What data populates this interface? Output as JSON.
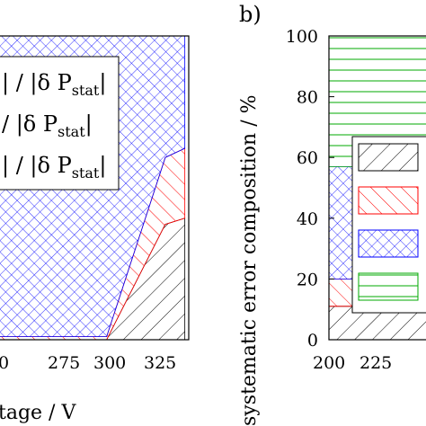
{
  "chart_data": [
    {
      "panel": "",
      "type": "area",
      "stacked": true,
      "xlabel_visible": "tage / V",
      "x_ticks": [
        "0",
        "275",
        "300",
        "325"
      ],
      "xlim": [
        245,
        342
      ],
      "ylim": [
        0,
        1
      ],
      "x": [
        245,
        300,
        330,
        340
      ],
      "series": [
        {
          "pattern": "hatch-left",
          "color": "#000000",
          "values": [
            0.0,
            0.0,
            0.38,
            0.4
          ]
        },
        {
          "pattern": "hatch-right",
          "color": "#ff0000",
          "values": [
            0.01,
            0.01,
            0.22,
            0.23
          ]
        },
        {
          "pattern": "crosshatch",
          "color": "#0000ff",
          "values": [
            0.99,
            0.99,
            0.4,
            0.37
          ]
        }
      ],
      "legend_entries": [
        {
          "main": "| / |δ P",
          "sub": "stat",
          "tail": "|"
        },
        {
          "main": " / |δ P",
          "sub": "stat",
          "tail": "|"
        },
        {
          "main": "| / |δ P",
          "sub": "stat",
          "tail": "|"
        }
      ],
      "legend_position": "left",
      "grid": false
    },
    {
      "panel": "b)",
      "type": "area",
      "stacked": true,
      "ylabel": "systematic error composition / %",
      "y_ticks": [
        "0",
        "20",
        "40",
        "60",
        "80",
        "100"
      ],
      "x_ticks": [
        "200",
        "225"
      ],
      "ylim": [
        0,
        100
      ],
      "xlim": [
        200,
        235
      ],
      "x": [
        200,
        235
      ],
      "series": [
        {
          "pattern": "hatch-left",
          "color": "#000000",
          "values": [
            11,
            11
          ]
        },
        {
          "pattern": "hatch-right",
          "color": "#ff0000",
          "values": [
            9,
            9
          ]
        },
        {
          "pattern": "crosshatch",
          "color": "#0000ff",
          "values": [
            37,
            37
          ]
        },
        {
          "pattern": "horizontal",
          "color": "#00aa00",
          "values": [
            43,
            43
          ]
        }
      ],
      "legend_position": "right",
      "grid": false
    }
  ]
}
